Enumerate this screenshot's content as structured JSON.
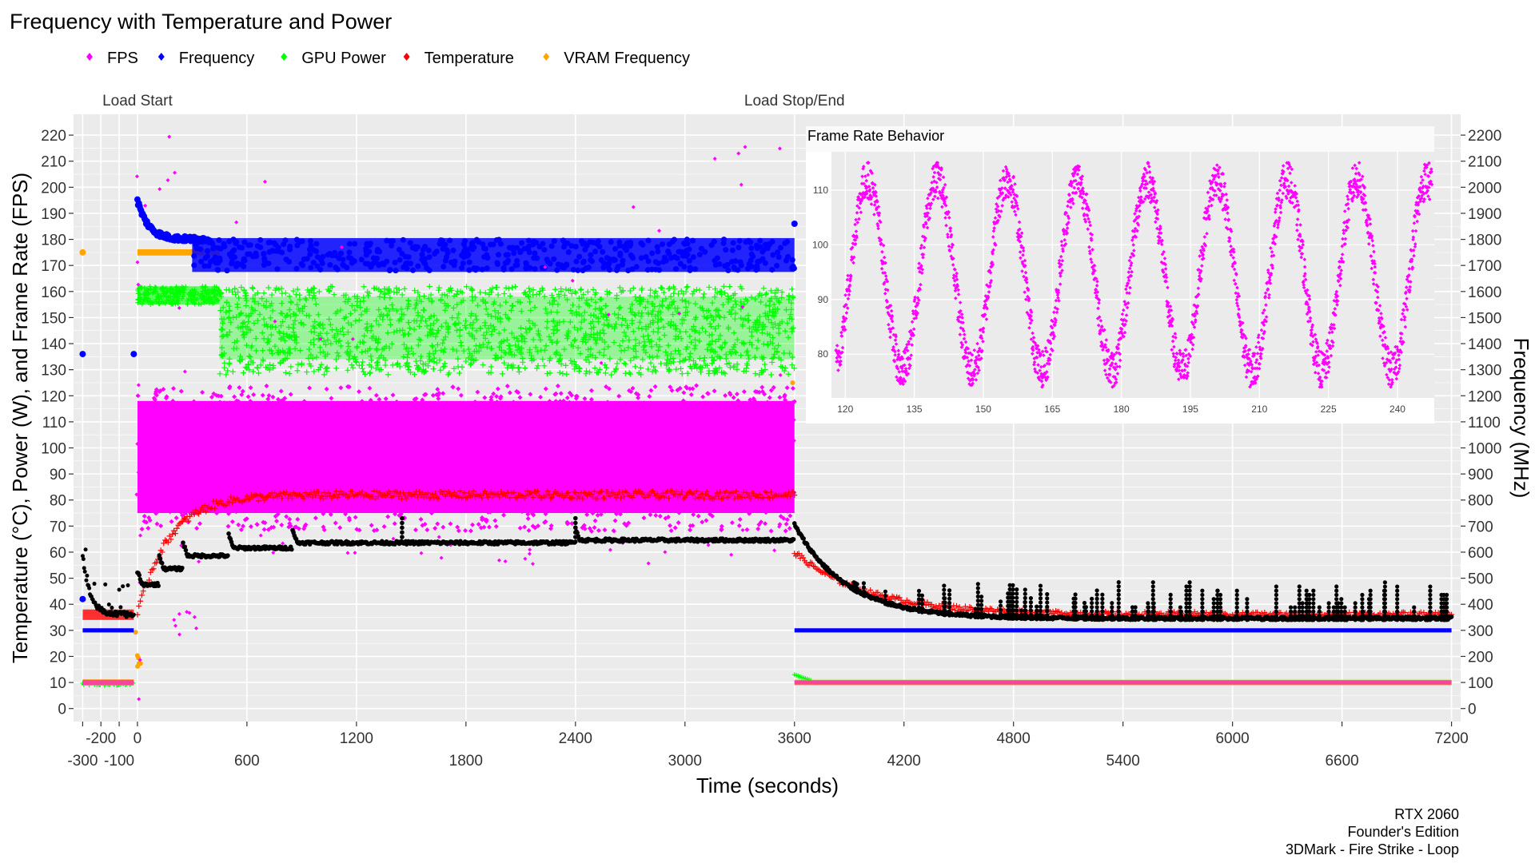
{
  "chart_data": {
    "type": "scatter",
    "title": "Frequency with Temperature and Power",
    "xlabel": "Time (seconds)",
    "ylabel": "Temperature (°C), Power (W), and Frame Rate (FPS)",
    "y2label": "Frequency (MHz)",
    "xlim": [
      -350,
      7250
    ],
    "ylim": [
      -5,
      228
    ],
    "y2_scale": 10,
    "x_ticks": [
      -300,
      -200,
      -100,
      0,
      600,
      1200,
      1800,
      2400,
      3000,
      3600,
      4200,
      4800,
      5400,
      6000,
      6600,
      7200
    ],
    "x_tick_labels": [
      {
        "x": -300,
        "label": "-300",
        "row": 2
      },
      {
        "x": -200,
        "label": "-200",
        "row": 1
      },
      {
        "x": -100,
        "label": "-100",
        "row": 2
      },
      {
        "x": 0,
        "label": "0",
        "row": 1
      },
      {
        "x": 600,
        "label": "600",
        "row": 2
      },
      {
        "x": 1200,
        "label": "1200",
        "row": 1
      },
      {
        "x": 1800,
        "label": "1800",
        "row": 2
      },
      {
        "x": 2400,
        "label": "2400",
        "row": 1
      },
      {
        "x": 3000,
        "label": "3000",
        "row": 2
      },
      {
        "x": 3600,
        "label": "3600",
        "row": 1
      },
      {
        "x": 4200,
        "label": "4200",
        "row": 2
      },
      {
        "x": 4800,
        "label": "4800",
        "row": 1
      },
      {
        "x": 5400,
        "label": "5400",
        "row": 2
      },
      {
        "x": 6000,
        "label": "6000",
        "row": 1
      },
      {
        "x": 6600,
        "label": "6600",
        "row": 2
      },
      {
        "x": 7200,
        "label": "7200",
        "row": 1
      }
    ],
    "y_ticks": [
      0,
      10,
      20,
      30,
      40,
      50,
      60,
      70,
      80,
      90,
      100,
      110,
      120,
      130,
      140,
      150,
      160,
      170,
      180,
      190,
      200,
      210,
      220
    ],
    "y2_ticks": [
      0,
      100,
      200,
      300,
      400,
      500,
      600,
      700,
      800,
      900,
      1000,
      1100,
      1200,
      1300,
      1400,
      1500,
      1600,
      1700,
      1800,
      1900,
      2000,
      2100,
      2200
    ],
    "grid": true,
    "legend": {
      "position": "top-left",
      "entries": [
        {
          "name": "FPS",
          "color": "#ff00ff"
        },
        {
          "name": "Frequency",
          "color": "#0000ff"
        },
        {
          "name": "GPU Power",
          "color": "#00ff00"
        },
        {
          "name": "Temperature",
          "color": "#ff0000"
        },
        {
          "name": "VRAM Frequency",
          "color": "#ffa500"
        }
      ]
    },
    "annotations": [
      {
        "label": "Load Start",
        "x": 0
      },
      {
        "label": "Load Stop/End",
        "x": 3600
      }
    ],
    "series": [
      {
        "name": "FPS",
        "color": "#ff00ff",
        "axis": "left",
        "idle_before": [
          -300,
          -20,
          10
        ],
        "load": {
          "x": [
            0,
            3600
          ],
          "low": 72,
          "high": 120,
          "center": 95
        },
        "idle_after": [
          3600,
          7200,
          10
        ]
      },
      {
        "name": "Frequency",
        "color": "#0000ff",
        "axis": "right",
        "idle_before": [
          -300,
          -20,
          300
        ],
        "spike_before": {
          "x": -300,
          "y": 1360
        },
        "load": {
          "x": [
            0,
            3600
          ],
          "start_peak": 1950,
          "low": 1680,
          "high": 1800
        },
        "idle_after": [
          3600,
          7200,
          300
        ]
      },
      {
        "name": "GPU Power",
        "color": "#00ff00",
        "axis": "left",
        "idle_before": [
          -300,
          -20,
          9.5
        ],
        "load": {
          "x": [
            0,
            3600
          ],
          "early_low": 155,
          "early_high": 162,
          "late_low": 128,
          "late_high": 162,
          "drop_at": 450
        },
        "idle_after": [
          3600,
          7200,
          10
        ]
      },
      {
        "name": "Temperature",
        "color": "#ff0000",
        "axis": "left",
        "idle_before": [
          -300,
          -20,
          36
        ],
        "load": {
          "x": [
            0,
            3600
          ],
          "start": 36,
          "plateau": 82
        },
        "idle_after": {
          "x": [
            3600,
            7200
          ],
          "start": 60,
          "end": 36
        }
      },
      {
        "name": "VRAM Frequency",
        "color": "#ffa500",
        "axis": "right",
        "idle_before": [
          -300,
          -20,
          100
        ],
        "spike_before": {
          "x": -300,
          "y": 1750
        },
        "load": {
          "x": [
            0,
            450
          ],
          "y": 1750
        },
        "idle_after": [
          3600,
          7200,
          100
        ]
      }
    ],
    "unnamed_series": [
      {
        "color": "#000000",
        "axis": "left",
        "idle_before": {
          "x": [
            -300,
            -20
          ],
          "start": 58,
          "end": 35
        },
        "load": {
          "x": [
            0,
            3600
          ],
          "steps": [
            [
              0,
              47
            ],
            [
              120,
              53
            ],
            [
              250,
              58
            ],
            [
              500,
              61
            ],
            [
              850,
              63
            ],
            [
              2400,
              64
            ]
          ]
        },
        "idle_after": {
          "x": [
            3600,
            7200
          ],
          "start": 70,
          "end": 34,
          "spike_top": 47
        }
      }
    ],
    "inset": {
      "title": "Frame Rate Behavior",
      "type": "scatter",
      "color": "#ff00ff",
      "xlim": [
        117,
        248
      ],
      "ylim": [
        72,
        117
      ],
      "x_ticks": [
        120,
        135,
        150,
        165,
        180,
        195,
        210,
        225,
        240
      ],
      "y_ticks": [
        80,
        90,
        100,
        110
      ],
      "cycle_period": 15.2,
      "low": 74,
      "high": 115
    },
    "caption": [
      "RTX 2060",
      "Founder's Edition",
      "3DMark - Fire Strike - Loop"
    ]
  }
}
